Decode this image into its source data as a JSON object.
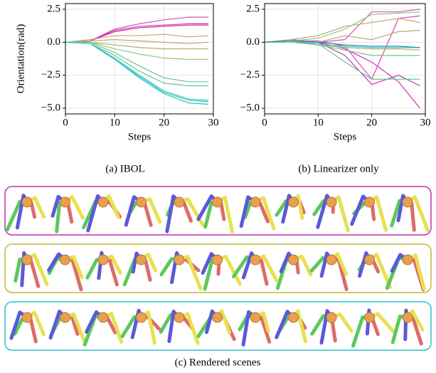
{
  "chart_data": [
    {
      "type": "line",
      "caption": "(a) IBOL",
      "xlabel": "Steps",
      "ylabel": "Orientation(rad)",
      "x": [
        0,
        5,
        10,
        15,
        20,
        25,
        29
      ],
      "xlim": [
        0,
        30
      ],
      "xticks": [
        0,
        10,
        20,
        30
      ],
      "ylim": [
        -5.43,
        2.93
      ],
      "yticks": [
        {
          "value": -5,
          "label": "−5.0"
        },
        {
          "value": -2.5,
          "label": "−2.5"
        },
        {
          "value": 0,
          "label": "0.0"
        },
        {
          "value": 2.5,
          "label": "2.5"
        }
      ],
      "grid": true,
      "series": [
        {
          "color": "#d62fb5",
          "values": [
            0,
            0.1,
            0.9,
            1.2,
            1.3,
            1.4,
            1.4
          ]
        },
        {
          "color": "#d64fc0",
          "values": [
            0,
            0.1,
            1.0,
            1.4,
            1.7,
            1.9,
            1.9
          ]
        },
        {
          "color": "#c82fa8",
          "values": [
            0,
            0.1,
            0.8,
            1.1,
            1.2,
            1.3,
            1.3
          ]
        },
        {
          "color": "#c8a46a",
          "values": [
            0,
            0.2,
            0.5,
            0.5,
            0.6,
            0.4,
            0.5
          ]
        },
        {
          "color": "#b8a870",
          "values": [
            0,
            0.1,
            0.2,
            0.1,
            0.0,
            -0.1,
            0.0
          ]
        },
        {
          "color": "#b0b070",
          "values": [
            0,
            0.0,
            -0.2,
            -0.4,
            -0.5,
            -0.5,
            -0.5
          ]
        },
        {
          "color": "#8cc880",
          "values": [
            0,
            0.0,
            -0.5,
            -0.9,
            -1.2,
            -1.3,
            -1.3
          ]
        },
        {
          "color": "#6cc58a",
          "values": [
            0,
            0.0,
            -0.8,
            -1.8,
            -2.7,
            -3.0,
            -3.0
          ]
        },
        {
          "color": "#5cc898",
          "values": [
            0,
            -0.1,
            -1.0,
            -2.2,
            -3.1,
            -3.3,
            -3.3
          ]
        },
        {
          "color": "#3cc4c0",
          "values": [
            0,
            -0.1,
            -1.3,
            -2.6,
            -3.8,
            -4.4,
            -4.5
          ]
        },
        {
          "color": "#2cc0c8",
          "values": [
            0,
            -0.1,
            -1.3,
            -2.7,
            -3.9,
            -4.6,
            -4.7
          ]
        },
        {
          "color": "#40c8b8",
          "values": [
            0,
            -0.1,
            -1.2,
            -2.5,
            -3.7,
            -4.3,
            -4.4
          ]
        }
      ]
    },
    {
      "type": "line",
      "caption": "(b) Linearizer only",
      "xlabel": "Steps",
      "x": [
        0,
        5,
        10,
        15,
        20,
        25,
        29
      ],
      "xlim": [
        0,
        30
      ],
      "xticks": [
        0,
        10,
        20,
        30
      ],
      "ylim": [
        -5.43,
        2.93
      ],
      "yticks": [
        {
          "value": -5,
          "label": "−5.0"
        },
        {
          "value": -2.5,
          "label": "−2.5"
        },
        {
          "value": 0,
          "label": "0.0"
        },
        {
          "value": 2.5,
          "label": "2.5"
        }
      ],
      "grid": true,
      "series": [
        {
          "color": "#d62fb5",
          "values": [
            0,
            0.1,
            0.0,
            -0.5,
            -1.5,
            -3.0,
            -5.0
          ]
        },
        {
          "color": "#d64fc0",
          "values": [
            0,
            0.1,
            0.0,
            0.2,
            2.3,
            2.3,
            2.5
          ]
        },
        {
          "color": "#c82fa8",
          "values": [
            0,
            0.2,
            0.0,
            -1.0,
            -3.2,
            -2.5,
            -3.3
          ]
        },
        {
          "color": "#e040c0",
          "values": [
            0,
            0.1,
            0.1,
            -0.3,
            -2.8,
            1.8,
            2.0
          ]
        },
        {
          "color": "#c8a46a",
          "values": [
            0,
            0.2,
            0.5,
            1.2,
            1.5,
            1.8,
            1.5
          ]
        },
        {
          "color": "#b8a870",
          "values": [
            0,
            0.1,
            0.0,
            0.5,
            0.2,
            0.8,
            0.9
          ]
        },
        {
          "color": "#b0b070",
          "values": [
            0,
            0.1,
            -0.2,
            -0.4,
            -0.5,
            -0.5,
            -0.6
          ]
        },
        {
          "color": "#8cc880",
          "values": [
            0,
            0.1,
            0.3,
            1.0,
            2.1,
            2.2,
            2.3
          ]
        },
        {
          "color": "#6cc58a",
          "values": [
            0,
            0.0,
            -0.2,
            -0.6,
            -1.0,
            -1.0,
            -1.0
          ]
        },
        {
          "color": "#5cc898",
          "values": [
            0,
            0.1,
            -0.1,
            -1.5,
            -2.8,
            -2.8,
            -2.8
          ]
        },
        {
          "color": "#3cc4c0",
          "values": [
            0,
            0.1,
            -0.2,
            -0.3,
            -0.4,
            -0.4,
            -0.4
          ]
        },
        {
          "color": "#2c90b8",
          "values": [
            0,
            0.1,
            0.0,
            -0.2,
            -0.3,
            -0.3,
            -0.4
          ]
        }
      ]
    }
  ],
  "scenes": {
    "caption": "(c) Rendered scenes",
    "borders": [
      "#c030b0",
      "#c0b93a",
      "#30c0cc"
    ]
  }
}
